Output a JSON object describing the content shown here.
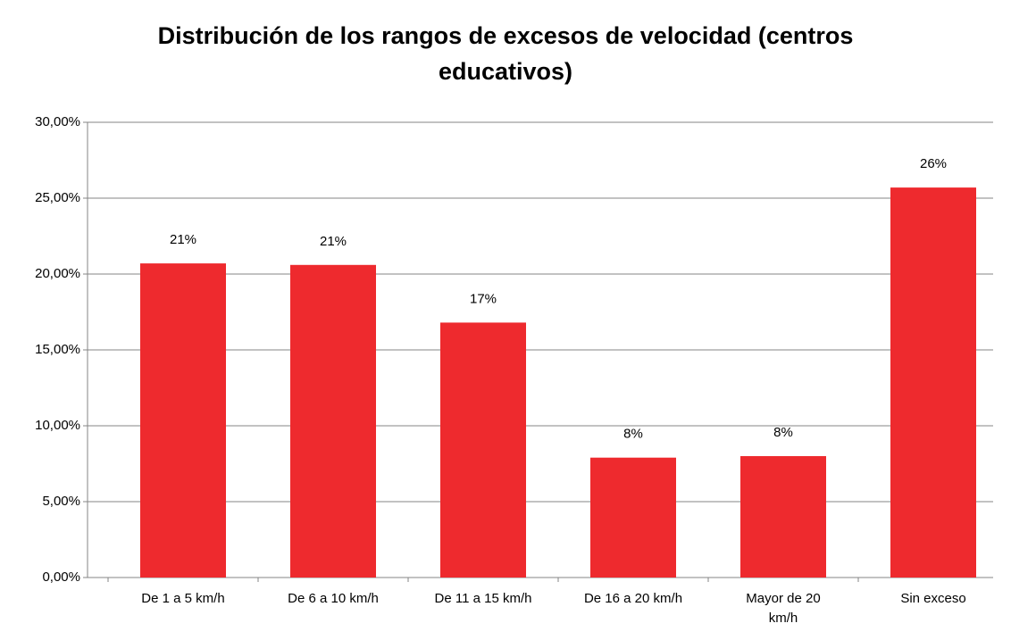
{
  "chart_data": {
    "type": "bar",
    "title": "Distribución de los rangos de excesos de velocidad (centros educativos)",
    "categories": [
      "De 1 a 5 km/h",
      "De 6 a 10 km/h",
      "De 11 a 15 km/h",
      "De 16 a 20 km/h",
      "Mayor de 20 km/h",
      "Sin exceso"
    ],
    "values": [
      20.7,
      20.6,
      16.8,
      7.9,
      8.0,
      25.7
    ],
    "value_labels": [
      "21%",
      "21%",
      "17%",
      "8%",
      "8%",
      "26%"
    ],
    "color": "#ee2a2e",
    "ylim": [
      0,
      30
    ],
    "yticks": [
      {
        "value": 0,
        "label": "0,00%"
      },
      {
        "value": 5,
        "label": "5,00%"
      },
      {
        "value": 10,
        "label": "10,00%"
      },
      {
        "value": 15,
        "label": "15,00%"
      },
      {
        "value": 20,
        "label": "20,00%"
      },
      {
        "value": 25,
        "label": "25,00%"
      },
      {
        "value": 30,
        "label": "30,00%"
      }
    ],
    "grid": true
  }
}
